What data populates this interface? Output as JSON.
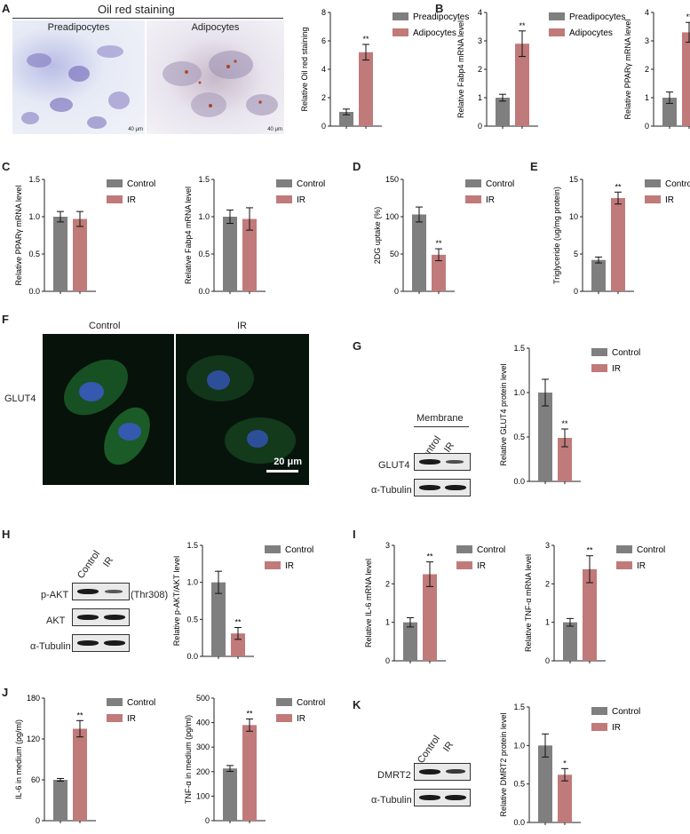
{
  "panels": {
    "A": "A",
    "B": "B",
    "C": "C",
    "D": "D",
    "E": "E",
    "F": "F",
    "G": "G",
    "H": "H",
    "I": "I",
    "J": "J",
    "K": "K"
  },
  "micrographs": {
    "oil_red_title": "Oil red staining",
    "preadipocytes": "Preadipocytes",
    "adipocytes": "Adipocytes",
    "scale_a": "40 μm",
    "control": "Control",
    "ir": "IR",
    "glut4": "GLUT4",
    "scale_f": "20 μm"
  },
  "blots": {
    "membrane": "Membrane",
    "control": "Control",
    "ir": "IR",
    "glut4": "GLUT4",
    "tubulin": "α-Tubulin",
    "pakt": "p-AKT",
    "thr308": "(Thr308)",
    "akt": "AKT",
    "dmrt2": "DMRT2"
  },
  "colors": {
    "control": "#7f7f7f",
    "treated": "#c07a7a"
  },
  "chart_data": [
    {
      "id": "A",
      "type": "bar",
      "categories": [
        "Preadipocytes",
        "Adipocytes"
      ],
      "values": [
        1.0,
        5.2
      ],
      "errors": [
        0.2,
        0.55
      ],
      "ylabel": "Relative Oil red staining",
      "ylim": [
        0,
        8
      ],
      "ticks": [
        0,
        2,
        4,
        6,
        8
      ],
      "legend": [
        "Preadipocytes",
        "Adipocytes"
      ],
      "annotations": [
        "",
        "**"
      ]
    },
    {
      "id": "B1",
      "type": "bar",
      "categories": [
        "Preadipocytes",
        "Adipocytes"
      ],
      "values": [
        1.0,
        2.9
      ],
      "errors": [
        0.12,
        0.45
      ],
      "ylabel": "Relative Fabp4 mRNA level",
      "ylim": [
        0,
        4
      ],
      "ticks": [
        0,
        1,
        2,
        3,
        4
      ],
      "legend": [
        "Preadipocytes",
        "Adipocytes"
      ],
      "annotations": [
        "",
        "**"
      ]
    },
    {
      "id": "B2",
      "type": "bar",
      "categories": [
        "Preadipocytes",
        "Adipocytes"
      ],
      "values": [
        1.0,
        3.3
      ],
      "errors": [
        0.2,
        0.35
      ],
      "ylabel": "Relative PPARγ mRNA level",
      "ylim": [
        0,
        4
      ],
      "ticks": [
        0,
        1,
        2,
        3,
        4
      ],
      "legend": [],
      "annotations": [
        "",
        "**"
      ]
    },
    {
      "id": "C1",
      "type": "bar",
      "categories": [
        "Control",
        "IR"
      ],
      "values": [
        1.0,
        0.97
      ],
      "errors": [
        0.07,
        0.1
      ],
      "ylabel": "Relative PPARγ mRNA level",
      "ylim": [
        0,
        1.5
      ],
      "ticks": [
        "0.0",
        "0.5",
        "1.0",
        "1.5"
      ],
      "legend": [
        "Control",
        "IR"
      ],
      "annotations": [
        "",
        ""
      ]
    },
    {
      "id": "C2",
      "type": "bar",
      "categories": [
        "Control",
        "IR"
      ],
      "values": [
        1.0,
        0.97
      ],
      "errors": [
        0.09,
        0.15
      ],
      "ylabel": "Relative Fabp4 mRNA level",
      "ylim": [
        0,
        1.5
      ],
      "ticks": [
        "0.0",
        "0.5",
        "1.0",
        "1.5"
      ],
      "legend": [
        "Control",
        "IR"
      ],
      "annotations": [
        "",
        ""
      ]
    },
    {
      "id": "D",
      "type": "bar",
      "categories": [
        "Control",
        "IR"
      ],
      "values": [
        103,
        49
      ],
      "errors": [
        10,
        8
      ],
      "ylabel": "2DG uptake (%)",
      "ylim": [
        0,
        150
      ],
      "ticks": [
        0,
        50,
        100,
        150
      ],
      "legend": [
        "Control",
        "IR"
      ],
      "annotations": [
        "",
        "**"
      ]
    },
    {
      "id": "E",
      "type": "bar",
      "categories": [
        "Control",
        "IR"
      ],
      "values": [
        4.2,
        12.5
      ],
      "errors": [
        0.4,
        0.8
      ],
      "ylabel": "Triglyceride (ug/mg protein)",
      "ylim": [
        0,
        15
      ],
      "ticks": [
        0,
        5,
        10,
        15
      ],
      "legend": [
        "Control",
        "IR"
      ],
      "annotations": [
        "",
        "**"
      ]
    },
    {
      "id": "G",
      "type": "bar",
      "categories": [
        "Control",
        "IR"
      ],
      "values": [
        1.0,
        0.49
      ],
      "errors": [
        0.15,
        0.1
      ],
      "ylabel": "Relative GLUT4 protein level",
      "ylim": [
        0,
        1.5
      ],
      "ticks": [
        "0.0",
        "0.5",
        "1.0",
        "1.5"
      ],
      "legend": [
        "Control",
        "IR"
      ],
      "annotations": [
        "",
        "**"
      ]
    },
    {
      "id": "H",
      "type": "bar",
      "categories": [
        "Control",
        "IR"
      ],
      "values": [
        1.0,
        0.31
      ],
      "errors": [
        0.15,
        0.08
      ],
      "ylabel": "Relative p-AKT/AKT level",
      "ylim": [
        0,
        1.5
      ],
      "ticks": [
        "0.0",
        "0.5",
        "1.0",
        "1.5"
      ],
      "legend": [
        "Control",
        "IR"
      ],
      "annotations": [
        "",
        "**"
      ]
    },
    {
      "id": "I1",
      "type": "bar",
      "categories": [
        "Control",
        "IR"
      ],
      "values": [
        1.0,
        2.25
      ],
      "errors": [
        0.12,
        0.32
      ],
      "ylabel": "Relative IL-6 mRNA level",
      "ylim": [
        0,
        3
      ],
      "ticks": [
        0,
        1,
        2,
        3
      ],
      "legend": [
        "Control",
        "IR"
      ],
      "annotations": [
        "",
        "**"
      ]
    },
    {
      "id": "I2",
      "type": "bar",
      "categories": [
        "Control",
        "IR"
      ],
      "values": [
        1.0,
        2.38
      ],
      "errors": [
        0.1,
        0.35
      ],
      "ylabel": "Relative TNF-α mRNA level",
      "ylim": [
        0,
        3
      ],
      "ticks": [
        0,
        1,
        2,
        3
      ],
      "legend": [
        "Control",
        "IR"
      ],
      "annotations": [
        "",
        "**"
      ]
    },
    {
      "id": "J1",
      "type": "bar",
      "categories": [
        "Control",
        "IR"
      ],
      "values": [
        60,
        135
      ],
      "errors": [
        2,
        12
      ],
      "ylabel": "IL-6 in medium (pg/ml)",
      "ylim": [
        0,
        180
      ],
      "ticks": [
        0,
        60,
        120,
        180
      ],
      "legend": [
        "Control",
        "IR"
      ],
      "annotations": [
        "",
        "**"
      ]
    },
    {
      "id": "J2",
      "type": "bar",
      "categories": [
        "Control",
        "IR"
      ],
      "values": [
        213,
        390
      ],
      "errors": [
        12,
        25
      ],
      "ylabel": "TNF-α in medium (pg/ml)",
      "ylim": [
        0,
        500
      ],
      "ticks": [
        0,
        100,
        200,
        300,
        400,
        500
      ],
      "legend": [
        "Control",
        "IR"
      ],
      "annotations": [
        "",
        "**"
      ]
    },
    {
      "id": "K",
      "type": "bar",
      "categories": [
        "Control",
        "IR"
      ],
      "values": [
        1.0,
        0.62
      ],
      "errors": [
        0.15,
        0.08
      ],
      "ylabel": "Relative DMRT2 protein level",
      "ylim": [
        0,
        1.5
      ],
      "ticks": [
        "0.0",
        "0.5",
        "1.0",
        "1.5"
      ],
      "legend": [
        "Control",
        "IR"
      ],
      "annotations": [
        "",
        "*"
      ]
    }
  ]
}
